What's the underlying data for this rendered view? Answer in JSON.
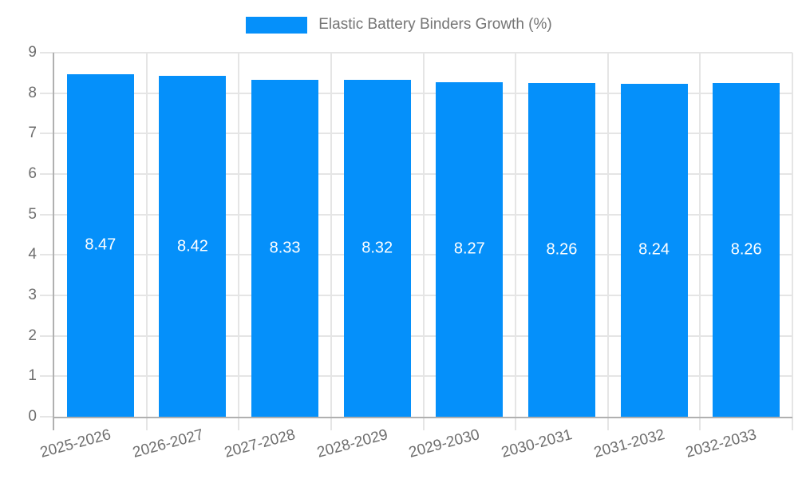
{
  "legend": {
    "label": "Elastic Battery Binders Growth (%)"
  },
  "chart_data": {
    "type": "bar",
    "title": "Elastic Battery Binders Growth (%)",
    "categories": [
      "2025-2026",
      "2026-2027",
      "2027-2028",
      "2028-2029",
      "2029-2030",
      "2030-2031",
      "2031-2032",
      "2032-2033"
    ],
    "values": [
      8.47,
      8.42,
      8.33,
      8.32,
      8.27,
      8.26,
      8.24,
      8.26
    ],
    "value_labels": [
      "8.47",
      "8.42",
      "8.33",
      "8.32",
      "8.27",
      "8.26",
      "8.24",
      "8.26"
    ],
    "xlabel": "",
    "ylabel": "",
    "ylim": [
      0,
      9
    ],
    "yticks": [
      "0",
      "1",
      "2",
      "3",
      "4",
      "5",
      "6",
      "7",
      "8",
      "9"
    ],
    "grid": true,
    "legend_position": "top-center"
  },
  "colors": {
    "bar": "#0590FA",
    "grid": "#e5e5e5",
    "axis": "#b0b0b0",
    "tick_text": "#6e6e6e",
    "legend_text": "#757575",
    "value_text": "#ffffff",
    "background": "#ffffff"
  }
}
